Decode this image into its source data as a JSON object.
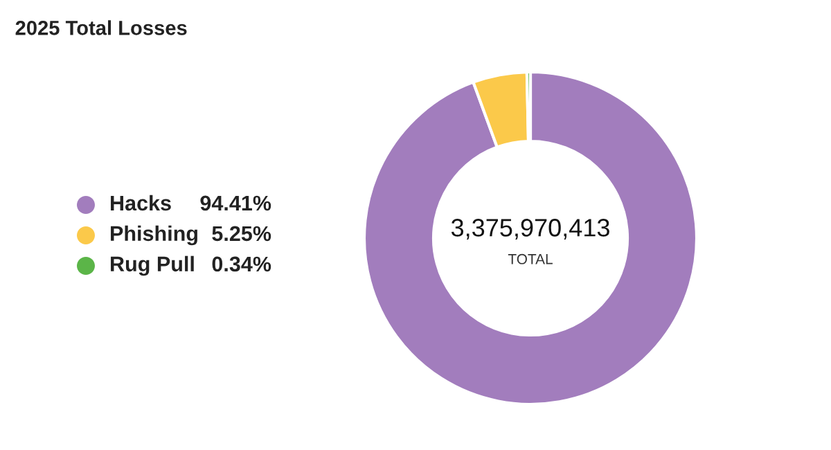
{
  "chart_data": {
    "type": "donut",
    "title": "2025 Total Losses",
    "categories": [
      "Hacks",
      "Phishing",
      "Rug Pull"
    ],
    "values": [
      94.41,
      5.25,
      0.34
    ],
    "colors": [
      "#a27dbd",
      "#fbc94a",
      "#5bb548"
    ],
    "value_labels": [
      "94.41%",
      "5.25%",
      "0.34%"
    ],
    "legend": "left",
    "annotations": [
      "3,375,970,413",
      "TOTAL"
    ]
  }
}
